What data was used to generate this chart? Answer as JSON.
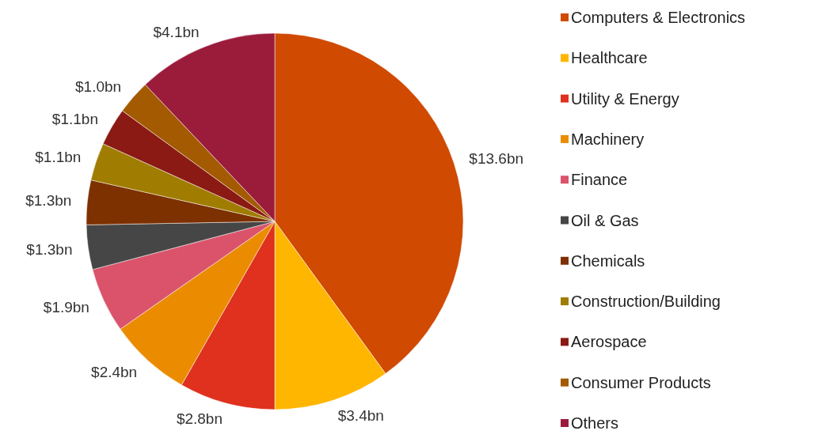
{
  "chart_data": {
    "type": "pie",
    "categories": [
      "Computers & Electronics",
      "Healthcare",
      "Utility & Energy",
      "Machinery",
      "Finance",
      "Oil & Gas",
      "Chemicals",
      "Construction/Building",
      "Aerospace",
      "Consumer Products",
      "Others"
    ],
    "values": [
      13.6,
      3.4,
      2.8,
      2.4,
      1.9,
      1.3,
      1.3,
      1.1,
      1.1,
      1.0,
      4.1
    ],
    "value_labels": [
      "$13.6bn",
      "$3.4bn",
      "$2.8bn",
      "$2.4bn",
      "$1.9bn",
      "$1.3bn",
      "$1.3bn",
      "$1.1bn",
      "$1.1bn",
      "$1.0bn",
      "$4.1bn"
    ],
    "colors": [
      "#d04a02",
      "#ffb600",
      "#e0301e",
      "#eb8c00",
      "#db536a",
      "#464646",
      "#7d3000",
      "#a07c00",
      "#8b1a14",
      "#a35a00",
      "#9b1b3b"
    ],
    "legend": "right"
  }
}
